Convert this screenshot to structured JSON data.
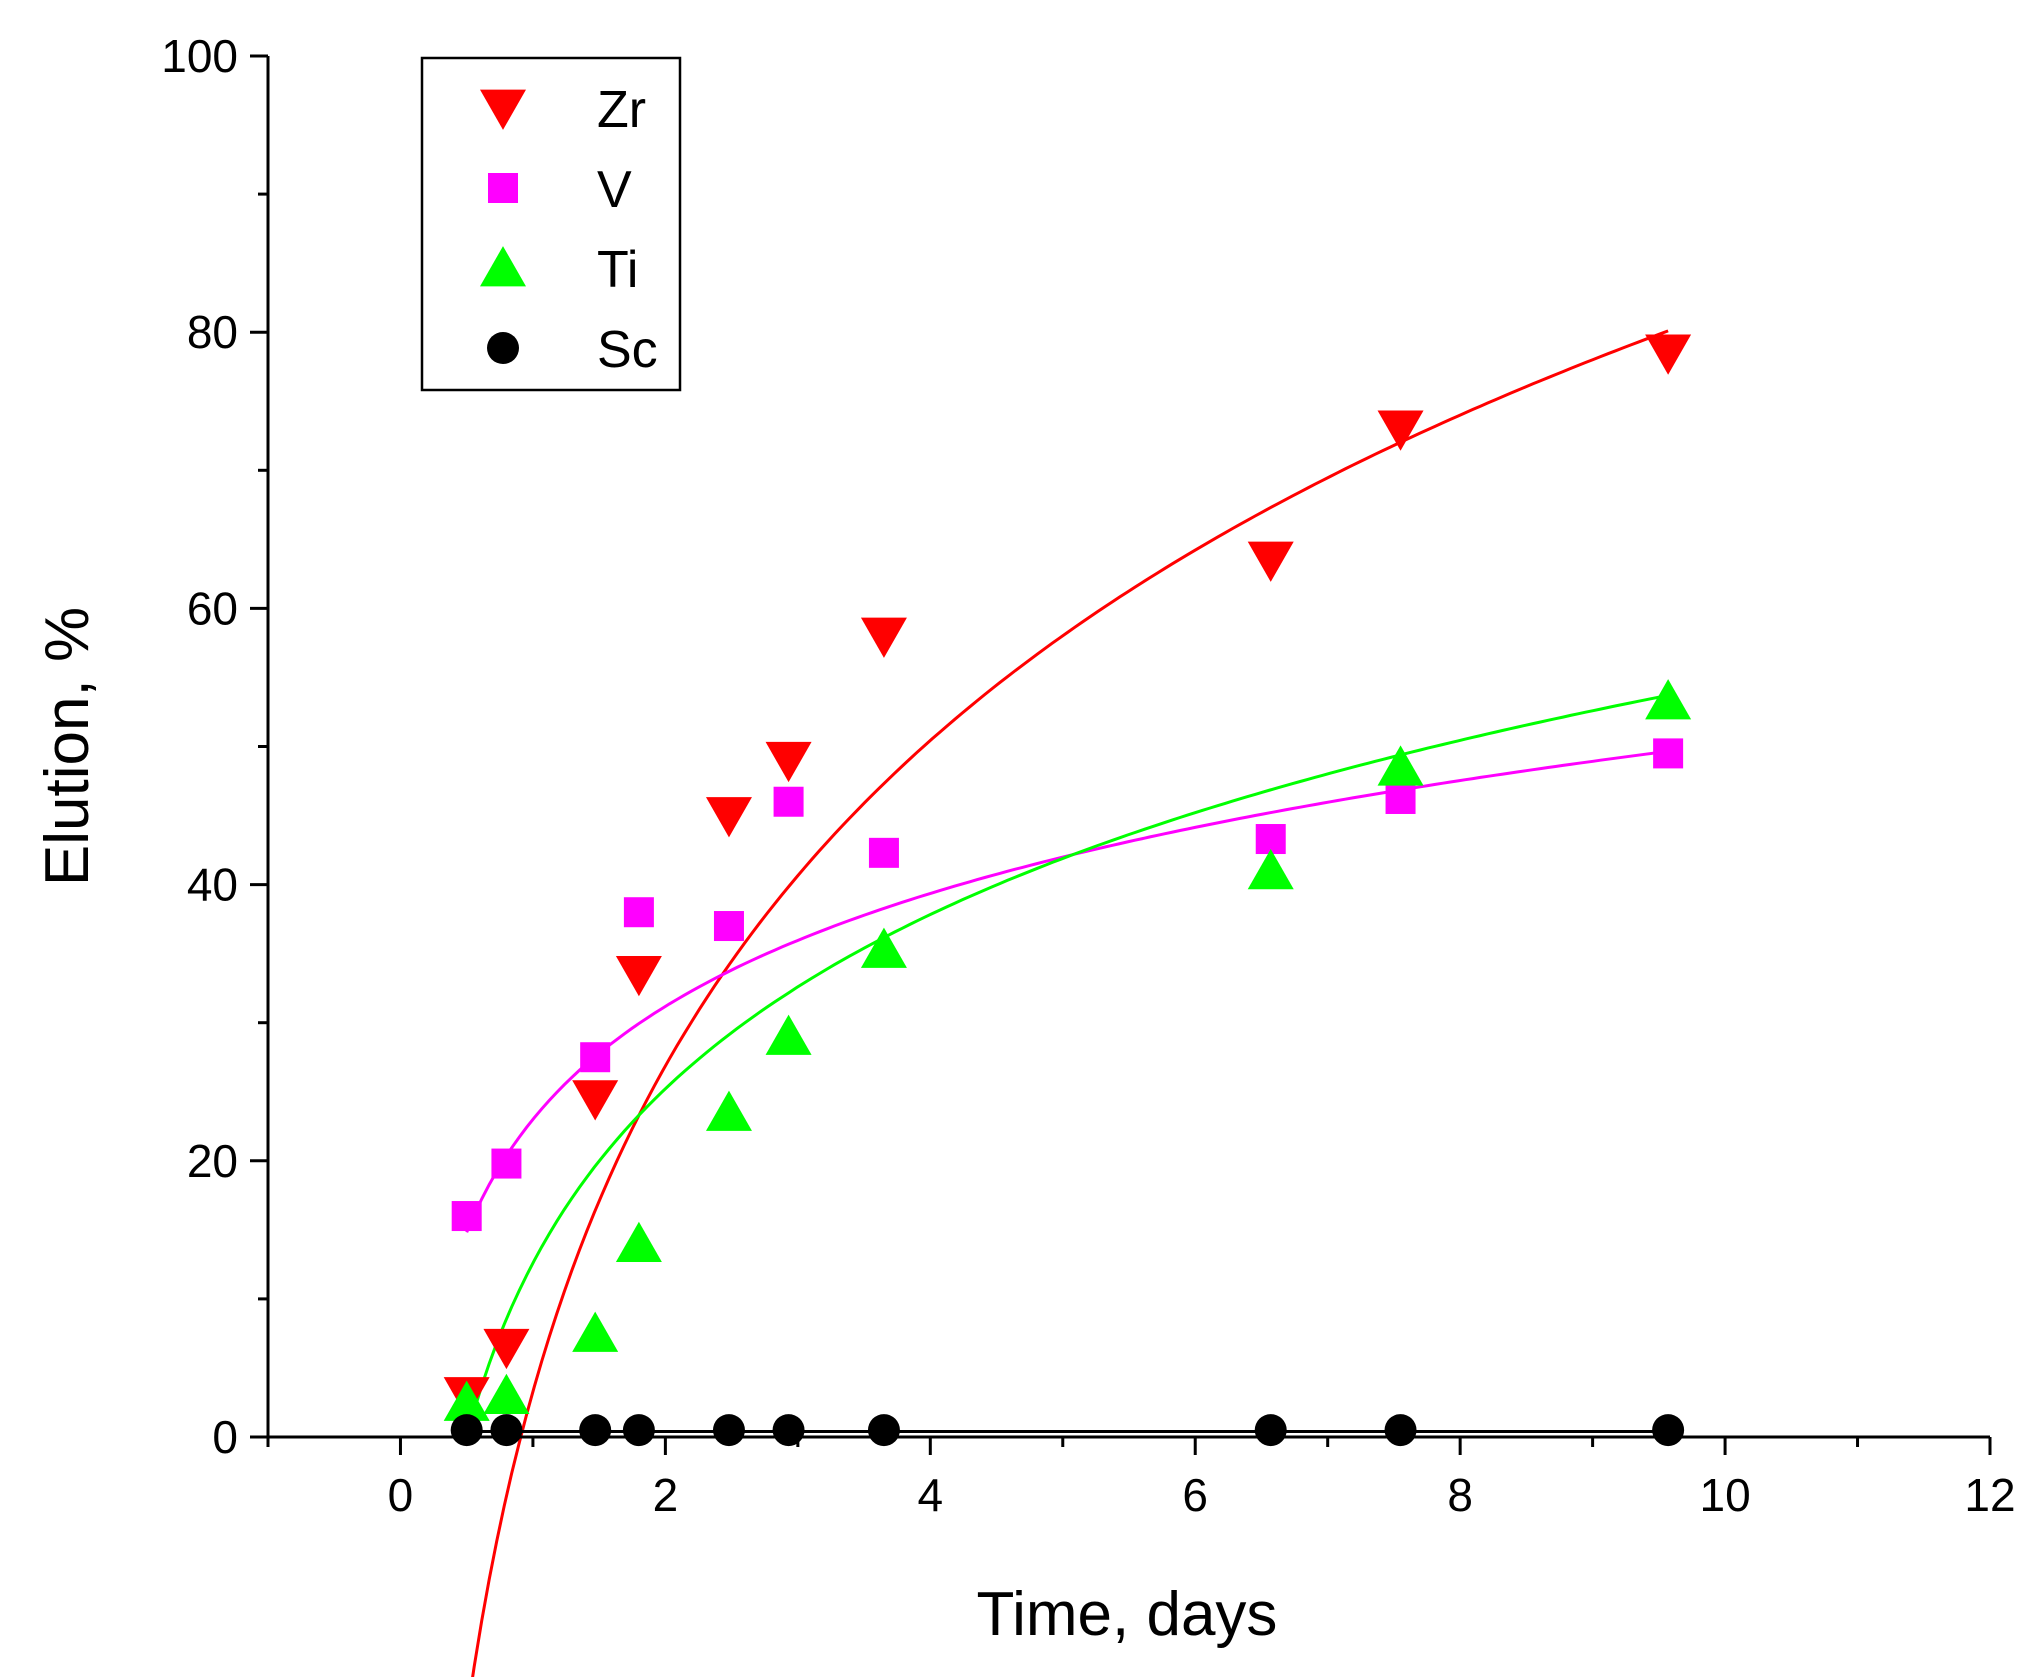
{
  "chart_data": {
    "type": "scatter",
    "title": "",
    "xlabel": "Time, days",
    "ylabel": "Elution, %",
    "xlim": [
      -1,
      12
    ],
    "ylim": [
      0,
      100
    ],
    "x_ticks": [
      0,
      2,
      4,
      6,
      8,
      10,
      12
    ],
    "x_minor_ticks": [
      -1,
      1,
      3,
      5,
      7,
      9,
      11
    ],
    "y_ticks": [
      0,
      20,
      40,
      60,
      80,
      100
    ],
    "y_minor_ticks": [
      10,
      30,
      50,
      70,
      90
    ],
    "x_tick_labels": [
      "0",
      "2",
      "4",
      "6",
      "8",
      "10",
      "12"
    ],
    "y_tick_labels": [
      "0",
      "20",
      "40",
      "60",
      "80",
      "100"
    ],
    "legend_position": "top-left",
    "grid": false,
    "series": [
      {
        "name": "Zr",
        "marker": "triangle-down",
        "color": "#ff0000",
        "x": [
          0.5,
          0.8,
          1.47,
          1.8,
          2.48,
          2.93,
          3.65,
          6.57,
          7.55,
          9.57
        ],
        "y": [
          3.0,
          6.5,
          24.5,
          33.5,
          45.0,
          49.0,
          58.0,
          63.5,
          73.0,
          78.5
        ],
        "fit": {
          "model": "logarithmic",
          "a": 3.3,
          "b": 34.0,
          "x_range": [
            0.5,
            9.57
          ]
        }
      },
      {
        "name": "V",
        "marker": "square",
        "color": "#ff00ff",
        "x": [
          0.5,
          0.8,
          1.47,
          1.8,
          2.48,
          2.93,
          3.65,
          6.57,
          7.55,
          9.57
        ],
        "y": [
          16.0,
          19.8,
          27.5,
          38.0,
          37.0,
          46.0,
          42.3,
          43.3,
          46.2,
          49.5
        ],
        "fit": {
          "model": "logarithmic",
          "a": 23.0,
          "b": 11.8,
          "x_range": [
            0.5,
            9.57
          ]
        }
      },
      {
        "name": "Ti",
        "marker": "triangle-up",
        "color": "#00ff00",
        "x": [
          0.5,
          0.8,
          1.47,
          1.8,
          2.48,
          2.93,
          3.65,
          6.57,
          7.55,
          9.57
        ],
        "y": [
          2.5,
          3.0,
          7.5,
          14.0,
          23.5,
          29.0,
          35.3,
          41.0,
          48.5,
          53.3
        ],
        "fit": {
          "model": "logarithmic",
          "a": 12.6,
          "b": 18.2,
          "x_range": [
            0.5,
            9.57
          ]
        }
      },
      {
        "name": "Sc",
        "marker": "circle",
        "color": "#000000",
        "x": [
          0.5,
          0.8,
          1.47,
          1.8,
          2.48,
          2.93,
          3.65,
          6.57,
          7.55,
          9.57
        ],
        "y": [
          0.5,
          0.5,
          0.5,
          0.5,
          0.5,
          0.5,
          0.5,
          0.5,
          0.5,
          0.5
        ],
        "fit": {
          "model": "constant",
          "value": 0.4,
          "x_range": [
            0.5,
            9.57
          ]
        }
      }
    ]
  }
}
